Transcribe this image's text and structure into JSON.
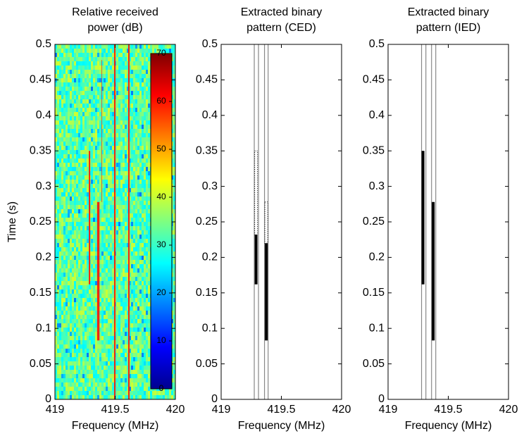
{
  "chart_data": [
    {
      "type": "spectrogram",
      "title": [
        "Relative received",
        "power (dB)"
      ],
      "xlabel": "Frequency (MHz)",
      "ylabel": "Time (s)",
      "xlim": [
        419,
        420
      ],
      "xticks": [
        419,
        419.5,
        420
      ],
      "ylim": [
        0,
        0.5
      ],
      "yticks": [
        0,
        0.05,
        0.1,
        0.15,
        0.2,
        0.25,
        0.3,
        0.35,
        0.4,
        0.45,
        0.5
      ],
      "colorbar": {
        "clim": [
          0,
          70
        ],
        "ticks": [
          0,
          10,
          20,
          30,
          40,
          50,
          60,
          70
        ]
      },
      "signals": {
        "freq": [
          419.287,
          419.36,
          419.39,
          419.497,
          419.614
        ],
        "bandwidth": [
          0.012,
          0.02,
          0.004,
          0.012,
          0.012
        ],
        "start": [
          0.162,
          0.083,
          0.278,
          0,
          0
        ],
        "end": [
          0.35,
          0.278,
          0.478,
          0.5,
          0.5
        ]
      }
    },
    {
      "type": "segments",
      "title": [
        "Extracted binary",
        "pattern (CED)"
      ],
      "xlabel": "Frequency (MHz)",
      "xlim": [
        419,
        420
      ],
      "xticks": [
        419,
        419.5,
        420
      ],
      "ylim": [
        0,
        0.5
      ],
      "yticks": [
        0,
        0.05,
        0.1,
        0.15,
        0.2,
        0.25,
        0.3,
        0.35,
        0.4,
        0.45,
        0.5
      ],
      "channel_edges": [
        419.275,
        419.31,
        419.36,
        419.39
      ],
      "edge_color": "#888888",
      "segment_color": "#000000",
      "segments": {
        "freq": [
          419.29,
          419.29,
          419.375,
          419.375
        ],
        "start": [
          0.162,
          0.232,
          0.083,
          0.22
        ],
        "end": [
          0.232,
          0.35,
          0.22,
          0.278
        ],
        "style": [
          "solid",
          "broken",
          "solid",
          "broken"
        ]
      }
    },
    {
      "type": "segments",
      "title": [
        "Extracted binary",
        "pattern (IED)"
      ],
      "xlabel": "Frequency (MHz)",
      "xlim": [
        419,
        420
      ],
      "xticks": [
        419,
        419.5,
        420
      ],
      "ylim": [
        0,
        0.5
      ],
      "yticks": [
        0,
        0.05,
        0.1,
        0.15,
        0.2,
        0.25,
        0.3,
        0.35,
        0.4,
        0.45,
        0.5
      ],
      "channel_edges": [
        419.278,
        419.314,
        419.361,
        419.396
      ],
      "edge_color": "#888888",
      "segment_color": "#000000",
      "segments": {
        "freq": [
          419.29,
          419.375
        ],
        "start": [
          0.162,
          0.083
        ],
        "end": [
          0.35,
          0.278
        ],
        "style": [
          "solid",
          "solid"
        ]
      }
    }
  ]
}
